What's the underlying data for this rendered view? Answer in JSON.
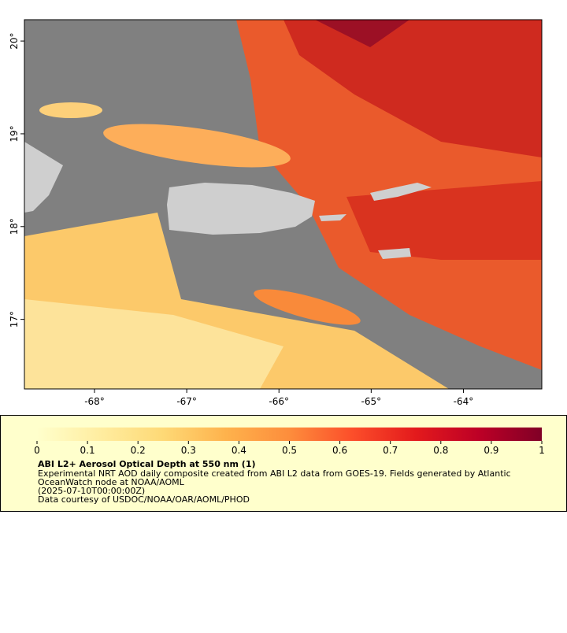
{
  "map": {
    "xlim": [
      -68.76,
      -63.15
    ],
    "ylim": [
      16.25,
      20.23
    ],
    "xticks": [
      {
        "value": -68,
        "label": "-68°"
      },
      {
        "value": -67,
        "label": "-67°"
      },
      {
        "value": -66,
        "label": "-66°"
      },
      {
        "value": -65,
        "label": "-65°"
      },
      {
        "value": -64,
        "label": "-64°"
      }
    ],
    "yticks": [
      {
        "value": 17,
        "label": "17°"
      },
      {
        "value": 18,
        "label": "18°"
      },
      {
        "value": 19,
        "label": "19°"
      },
      {
        "value": 20,
        "label": "20°"
      }
    ]
  },
  "colorbar": {
    "lim": [
      0,
      1
    ],
    "ticks": [
      0,
      0.1,
      0.2,
      0.3,
      0.4,
      0.5,
      0.6,
      0.7,
      0.8,
      0.9,
      1
    ],
    "colors": [
      "#ffffcc",
      "#ffeda0",
      "#fed976",
      "#feb24c",
      "#fd8d3c",
      "#fc4e2a",
      "#e31a1c",
      "#bd0026",
      "#800026"
    ]
  },
  "legend": {
    "title": "ABI L2+ Aerosol Optical Depth at 550 nm (1)",
    "description": "Experimental NRT AOD daily composite created from ABI L2 data from GOES-19. Fields generated by Atlantic OceanWatch node at NOAA/AOML",
    "time": "(2025-07-10T00:00:00Z)",
    "credit": "Data courtesy of USDOC/NOAA/OAR/AOML/PHOD"
  }
}
